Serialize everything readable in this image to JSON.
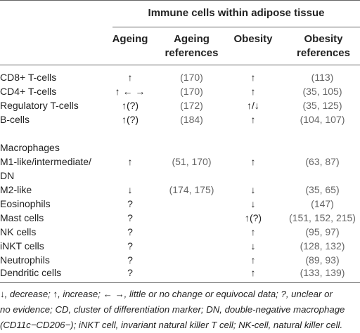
{
  "table": {
    "super_header": "Immune cells within adipose tissue",
    "col_ageing": "Ageing",
    "col_ageing_refs": "Ageing references",
    "col_obesity": "Obesity",
    "col_obesity_refs": "Obesity references",
    "group1": [
      {
        "cell": "CD8+ T-cells",
        "ageing": "↑",
        "ageing_refs": "(170)",
        "obesity": "↑",
        "obesity_refs": "(113)"
      },
      {
        "cell": "CD4+ T-cells",
        "ageing": "↑ ← →",
        "ageing_refs": "(170)",
        "obesity": "↑",
        "obesity_refs": "(35, 105)"
      },
      {
        "cell": "Regulatory T-cells",
        "ageing": "↑(?)",
        "ageing_refs": "(172)",
        "obesity": "↑/↓",
        "obesity_refs": "(35, 125)"
      },
      {
        "cell": "B-cells",
        "ageing": "↑(?)",
        "ageing_refs": "(184)",
        "obesity": "↑",
        "obesity_refs": "(104, 107)"
      }
    ],
    "macrophages_label": "Macrophages",
    "m1": {
      "cell_line1": "M1-like/intermediate/",
      "cell_line2": "DN",
      "ageing": "↑",
      "ageing_refs": "(51, 170)",
      "obesity": "↑",
      "obesity_refs": "(63, 87)"
    },
    "group2": [
      {
        "cell": "M2-like",
        "ageing": "↓",
        "ageing_refs": "(174, 175)",
        "obesity": "↓",
        "obesity_refs": "(35, 65)"
      },
      {
        "cell": "Eosinophils",
        "ageing": "?",
        "ageing_refs": "",
        "obesity": "↓",
        "obesity_refs": "(147)"
      },
      {
        "cell": "Mast cells",
        "ageing": "?",
        "ageing_refs": "",
        "obesity": "↑(?)",
        "obesity_refs": "(151, 152, 215)"
      },
      {
        "cell": "NK cells",
        "ageing": "?",
        "ageing_refs": "",
        "obesity": "↑",
        "obesity_refs": "(95, 97)"
      },
      {
        "cell": "iNKT cells",
        "ageing": "?",
        "ageing_refs": "",
        "obesity": "↓",
        "obesity_refs": "(128, 132)"
      },
      {
        "cell": "Neutrophils",
        "ageing": "?",
        "ageing_refs": "",
        "obesity": "↑",
        "obesity_refs": "(89, 93)"
      },
      {
        "cell": "Dendritic cells",
        "ageing": "?",
        "ageing_refs": "",
        "obesity": "↑",
        "obesity_refs": "(133, 139)"
      }
    ]
  },
  "footnote": {
    "line1": "↓, decrease; ↑, increase; ← →, little or no change or equivocal data; ?, unclear or",
    "line2": "no evidence; CD, cluster of differentiation marker; DN, double-negative macrophage",
    "line3": "(CD11c−CD206−); iNKT cell, invariant natural killer T cell; NK-cell, natural killer cell."
  }
}
